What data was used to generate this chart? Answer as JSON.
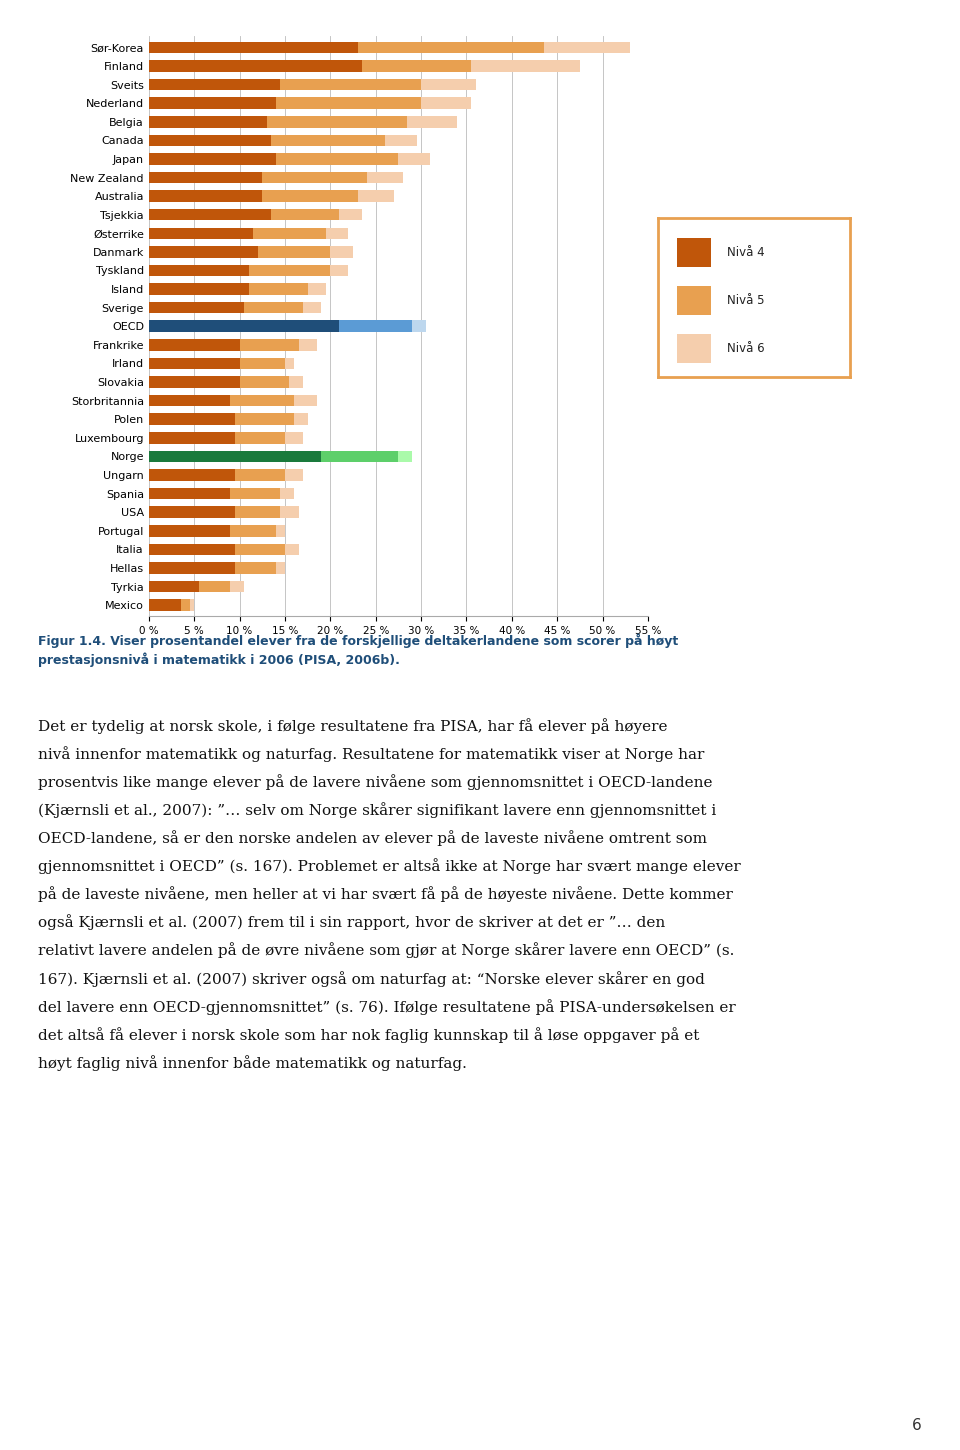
{
  "countries": [
    "Sør-Korea",
    "Finland",
    "Sveits",
    "Nederland",
    "Belgia",
    "Canada",
    "Japan",
    "New Zealand",
    "Australia",
    "Tsjekkia",
    "Østerrike",
    "Danmark",
    "Tyskland",
    "Island",
    "Sverige",
    "OECD",
    "Frankrike",
    "Irland",
    "Slovakia",
    "Storbritannia",
    "Polen",
    "Luxembourg",
    "Norge",
    "Ungarn",
    "Spania",
    "USA",
    "Portugal",
    "Italia",
    "Hellas",
    "Tyrkia",
    "Mexico"
  ],
  "niva4": [
    23.0,
    23.5,
    14.5,
    14.0,
    13.0,
    13.5,
    14.0,
    12.5,
    12.5,
    13.5,
    11.5,
    12.0,
    11.0,
    11.0,
    10.5,
    21.0,
    10.0,
    10.0,
    10.0,
    9.0,
    9.5,
    9.5,
    19.0,
    9.5,
    9.0,
    9.5,
    9.0,
    9.5,
    9.5,
    5.5,
    3.5
  ],
  "niva5": [
    20.5,
    12.0,
    15.5,
    16.0,
    15.5,
    12.5,
    13.5,
    11.5,
    10.5,
    7.5,
    8.0,
    8.0,
    9.0,
    6.5,
    6.5,
    8.0,
    6.5,
    5.0,
    5.5,
    7.0,
    6.5,
    5.5,
    8.5,
    5.5,
    5.5,
    5.0,
    5.0,
    5.5,
    4.5,
    3.5,
    1.0
  ],
  "niva6": [
    9.5,
    12.0,
    6.0,
    5.5,
    5.5,
    3.5,
    3.5,
    4.0,
    4.0,
    2.5,
    2.5,
    2.5,
    2.0,
    2.0,
    2.0,
    1.5,
    2.0,
    1.0,
    1.5,
    2.5,
    1.5,
    2.0,
    1.5,
    2.0,
    1.5,
    2.0,
    1.0,
    1.5,
    1.0,
    1.5,
    0.5
  ],
  "color_niva4_default": "#C0560A",
  "color_niva5_default": "#E8A050",
  "color_niva6_default": "#F5CEAD",
  "color_niva4_oecd": "#1F4E79",
  "color_niva5_oecd": "#5B9BD5",
  "color_niva6_oecd": "#BDD7EE",
  "color_niva4_norge": "#1A7A3C",
  "color_niva5_norge": "#5DCF6A",
  "color_niva6_norge": "#AAFAAA",
  "xlim": [
    0,
    55
  ],
  "xticks": [
    0,
    5,
    10,
    15,
    20,
    25,
    30,
    35,
    40,
    45,
    50,
    55
  ],
  "background_color": "#ffffff",
  "legend_labels": [
    "Nivå 4",
    "Nivå 5",
    "Nivå 6"
  ],
  "legend_colors": [
    "#C0560A",
    "#E8A050",
    "#F5CEAD"
  ],
  "caption_line1": "Figur 1.4. Viser prosentandel elever fra de forskjellige deltakerlandene som scorer på høyt",
  "caption_line2": "prestasjonsnivå i matematikk i 2006 (PISA, 2006b).",
  "caption_color": "#1F4E79",
  "body_paragraphs": [
    "Det er tydelig at norsk skole, i følge resultatene fra PISA, har få elever på høyere nivå innenfor matematikk og naturfag. Resultatene for matematikk viser at Norge har prosentvis like mange elever på de lavere nivåene som gjennomsnittet i OECD-landene (Kjærnsli et al., 2007): ”… selv om Norge skårer signifikant lavere enn gjennomsnittet i OECD-landene, så er den norske andelen av elever på de laveste nivåene omtrent som gjennomsnittet i OECD” (s. 167). Problemet er altså ikke at Norge har svært mange elever på de laveste nivåene, men heller at vi har svært få på de høyeste nivåene. Dette kommer også Kjærnsli et al. (2007) frem til i sin rapport, hvor de skriver at det er ”… den relativt lavere andelen på de øvre nivåene som gjør at Norge skårer lavere enn OECD” (s. 167). Kjærnsli et al. (2007) skriver også om naturfag at: “Norske elever skårer en god del lavere enn OECD-gjennomsnittet” (s. 76). Ifølge resultatene på PISA-undersøkelsen er det altså få elever i norsk skole som har nok faglig kunnskap til å løse oppgaver på et høyt faglig nivå innenfor både matematikk og naturfag."
  ],
  "page_number": "6"
}
